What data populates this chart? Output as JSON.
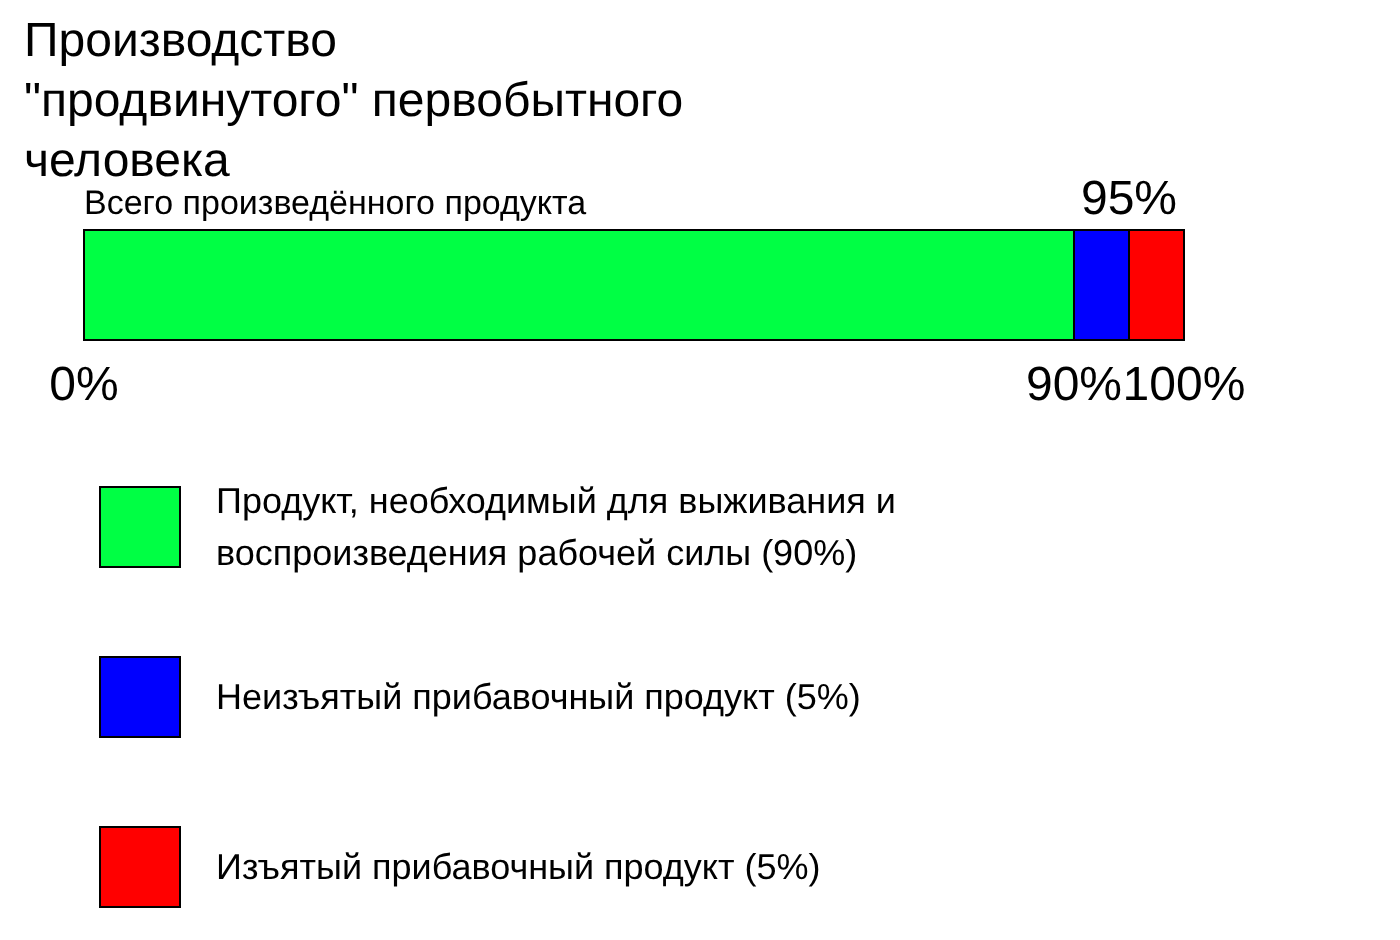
{
  "chart_data": {
    "type": "bar",
    "orientation": "horizontal",
    "stacked": true,
    "title": "Производство \"продвинутого\" первобытного человека",
    "categories": [
      "Всего произведённого продукта"
    ],
    "series": [
      {
        "name": "Продукт, необходимый для выживания и воспроизведения рабочей силы (90%)",
        "color": "#00ff44",
        "values": [
          90
        ]
      },
      {
        "name": "Неизъятый прибавочный продукт (5%)",
        "color": "#0000ff",
        "values": [
          5
        ]
      },
      {
        "name": "Изъятый прибавочный продукт (5%)",
        "color": "#ff0000",
        "values": [
          5
        ]
      }
    ],
    "xlim": [
      0,
      100
    ],
    "xticks": [
      {
        "value": 0,
        "label": "0%"
      },
      {
        "value": 90,
        "label": "90%"
      },
      {
        "value": 100,
        "label": "100%"
      }
    ],
    "annotations": [
      {
        "text": "95%",
        "x": 95,
        "y": "Всего произведённого продукта"
      }
    ],
    "legend": "bottom"
  }
}
